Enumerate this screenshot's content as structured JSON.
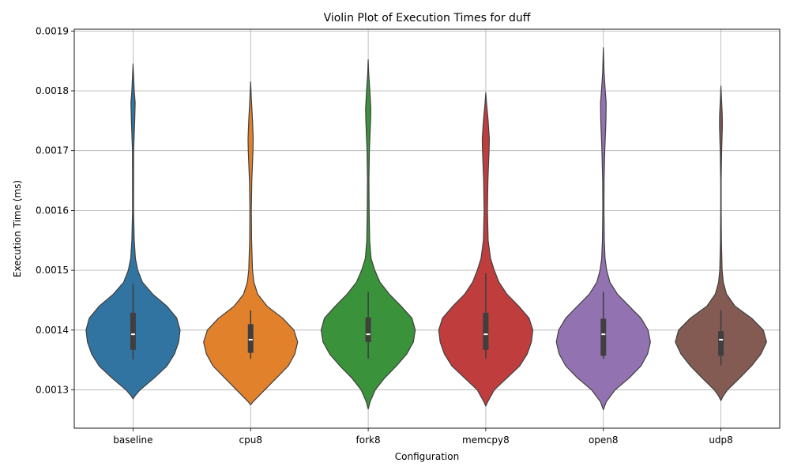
{
  "chart_data": {
    "type": "violin",
    "title": "Violin Plot of Execution Times for duff",
    "xlabel": "Configuration",
    "ylabel": "Execution Time (ms)",
    "ylim": [
      0.001236,
      0.001903
    ],
    "yticks": [
      0.0013,
      0.0014,
      0.0015,
      0.0016,
      0.0017,
      0.0018,
      0.0019
    ],
    "ytick_labels": [
      "0.0013",
      "0.0014",
      "0.0015",
      "0.0016",
      "0.0017",
      "0.0018",
      "0.0019"
    ],
    "grid": true,
    "categories": [
      "baseline",
      "cpu8",
      "fork8",
      "memcpy8",
      "open8",
      "udp8"
    ],
    "colors": [
      "#3274a1",
      "#e1812c",
      "#3a923a",
      "#c03d3e",
      "#9372b2",
      "#845b53"
    ],
    "series": [
      {
        "min": 0.001285,
        "max": 0.001845,
        "q1": 0.001367,
        "median": 0.001393,
        "q3": 0.001429,
        "whisker_low": 0.001351,
        "whisker_high": 0.001477,
        "density": [
          [
            0.001285,
            0
          ],
          [
            0.00129,
            0.04
          ],
          [
            0.0013,
            0.15
          ],
          [
            0.00132,
            0.45
          ],
          [
            0.00134,
            0.72
          ],
          [
            0.00136,
            0.88
          ],
          [
            0.00138,
            0.97
          ],
          [
            0.0014,
            1
          ],
          [
            0.00142,
            0.93
          ],
          [
            0.00144,
            0.72
          ],
          [
            0.00146,
            0.42
          ],
          [
            0.00148,
            0.2
          ],
          [
            0.0015,
            0.1
          ],
          [
            0.00152,
            0.05
          ],
          [
            0.00155,
            0.025
          ],
          [
            0.0016,
            0.01
          ],
          [
            0.0017,
            0.012
          ],
          [
            0.00175,
            0.035
          ],
          [
            0.00178,
            0.045
          ],
          [
            0.0018,
            0.025
          ],
          [
            0.00183,
            0.008
          ],
          [
            0.001845,
            0
          ]
        ]
      },
      {
        "min": 0.001275,
        "max": 0.001815,
        "q1": 0.001362,
        "median": 0.001384,
        "q3": 0.00141,
        "whisker_low": 0.001352,
        "whisker_high": 0.001433,
        "density": [
          [
            0.001275,
            0
          ],
          [
            0.00128,
            0.05
          ],
          [
            0.0013,
            0.3
          ],
          [
            0.00132,
            0.55
          ],
          [
            0.00134,
            0.8
          ],
          [
            0.00136,
            0.94
          ],
          [
            0.00138,
            1
          ],
          [
            0.0014,
            0.92
          ],
          [
            0.00142,
            0.68
          ],
          [
            0.00144,
            0.35
          ],
          [
            0.00146,
            0.15
          ],
          [
            0.00148,
            0.07
          ],
          [
            0.0015,
            0.04
          ],
          [
            0.00155,
            0.02
          ],
          [
            0.0016,
            0.015
          ],
          [
            0.00165,
            0.025
          ],
          [
            0.0017,
            0.05
          ],
          [
            0.00172,
            0.055
          ],
          [
            0.00175,
            0.04
          ],
          [
            0.00178,
            0.02
          ],
          [
            0.0018,
            0.008
          ],
          [
            0.001815,
            0
          ]
        ]
      },
      {
        "min": 0.001268,
        "max": 0.001852,
        "q1": 0.00138,
        "median": 0.001393,
        "q3": 0.001421,
        "whisker_low": 0.001352,
        "whisker_high": 0.001464,
        "density": [
          [
            0.001268,
            0
          ],
          [
            0.00128,
            0.04
          ],
          [
            0.0013,
            0.15
          ],
          [
            0.00132,
            0.35
          ],
          [
            0.00134,
            0.6
          ],
          [
            0.00136,
            0.82
          ],
          [
            0.00138,
            0.96
          ],
          [
            0.0014,
            1
          ],
          [
            0.00142,
            0.93
          ],
          [
            0.00144,
            0.7
          ],
          [
            0.00146,
            0.45
          ],
          [
            0.00148,
            0.25
          ],
          [
            0.0015,
            0.14
          ],
          [
            0.00152,
            0.06
          ],
          [
            0.00155,
            0.03
          ],
          [
            0.0016,
            0.02
          ],
          [
            0.00165,
            0.015
          ],
          [
            0.0017,
            0.025
          ],
          [
            0.00175,
            0.05
          ],
          [
            0.00177,
            0.055
          ],
          [
            0.0018,
            0.035
          ],
          [
            0.00183,
            0.01
          ],
          [
            0.001852,
            0
          ]
        ]
      },
      {
        "min": 0.001273,
        "max": 0.001797,
        "q1": 0.001367,
        "median": 0.001393,
        "q3": 0.001429,
        "whisker_low": 0.001352,
        "whisker_high": 0.001495,
        "density": [
          [
            0.001273,
            0
          ],
          [
            0.00128,
            0.04
          ],
          [
            0.0013,
            0.18
          ],
          [
            0.00132,
            0.45
          ],
          [
            0.00134,
            0.72
          ],
          [
            0.00136,
            0.88
          ],
          [
            0.00138,
            0.97
          ],
          [
            0.0014,
            1
          ],
          [
            0.00142,
            0.92
          ],
          [
            0.00144,
            0.7
          ],
          [
            0.00146,
            0.45
          ],
          [
            0.00148,
            0.28
          ],
          [
            0.0015,
            0.18
          ],
          [
            0.00152,
            0.1
          ],
          [
            0.00155,
            0.05
          ],
          [
            0.0016,
            0.035
          ],
          [
            0.00165,
            0.045
          ],
          [
            0.0017,
            0.07
          ],
          [
            0.00172,
            0.075
          ],
          [
            0.00175,
            0.05
          ],
          [
            0.00178,
            0.015
          ],
          [
            0.001797,
            0
          ]
        ]
      },
      {
        "min": 0.001267,
        "max": 0.001872,
        "q1": 0.001357,
        "median": 0.001393,
        "q3": 0.001419,
        "whisker_low": 0.001352,
        "whisker_high": 0.001464,
        "density": [
          [
            0.001267,
            0
          ],
          [
            0.00128,
            0.06
          ],
          [
            0.0013,
            0.25
          ],
          [
            0.00132,
            0.55
          ],
          [
            0.00134,
            0.8
          ],
          [
            0.00136,
            0.94
          ],
          [
            0.00138,
            1
          ],
          [
            0.0014,
            0.95
          ],
          [
            0.00142,
            0.8
          ],
          [
            0.00144,
            0.55
          ],
          [
            0.00146,
            0.3
          ],
          [
            0.00148,
            0.14
          ],
          [
            0.0015,
            0.07
          ],
          [
            0.00152,
            0.035
          ],
          [
            0.00155,
            0.02
          ],
          [
            0.0016,
            0.012
          ],
          [
            0.00165,
            0.015
          ],
          [
            0.0017,
            0.03
          ],
          [
            0.00175,
            0.055
          ],
          [
            0.00178,
            0.06
          ],
          [
            0.0018,
            0.04
          ],
          [
            0.00183,
            0.015
          ],
          [
            0.001872,
            0
          ]
        ]
      },
      {
        "min": 0.001282,
        "max": 0.001808,
        "q1": 0.001357,
        "median": 0.001384,
        "q3": 0.001398,
        "whisker_low": 0.001341,
        "whisker_high": 0.001433,
        "density": [
          [
            0.001282,
            0
          ],
          [
            0.00129,
            0.05
          ],
          [
            0.0013,
            0.14
          ],
          [
            0.00132,
            0.4
          ],
          [
            0.00134,
            0.65
          ],
          [
            0.00136,
            0.85
          ],
          [
            0.00138,
            0.97
          ],
          [
            0.0014,
            0.9
          ],
          [
            0.00142,
            0.65
          ],
          [
            0.00144,
            0.3
          ],
          [
            0.00146,
            0.12
          ],
          [
            0.00148,
            0.05
          ],
          [
            0.0015,
            0.025
          ],
          [
            0.00155,
            0.01
          ],
          [
            0.0016,
            0.005
          ],
          [
            0.00165,
            0.005
          ],
          [
            0.0017,
            0.015
          ],
          [
            0.00174,
            0.03
          ],
          [
            0.00176,
            0.028
          ],
          [
            0.00179,
            0.01
          ],
          [
            0.001808,
            0
          ]
        ]
      }
    ]
  }
}
